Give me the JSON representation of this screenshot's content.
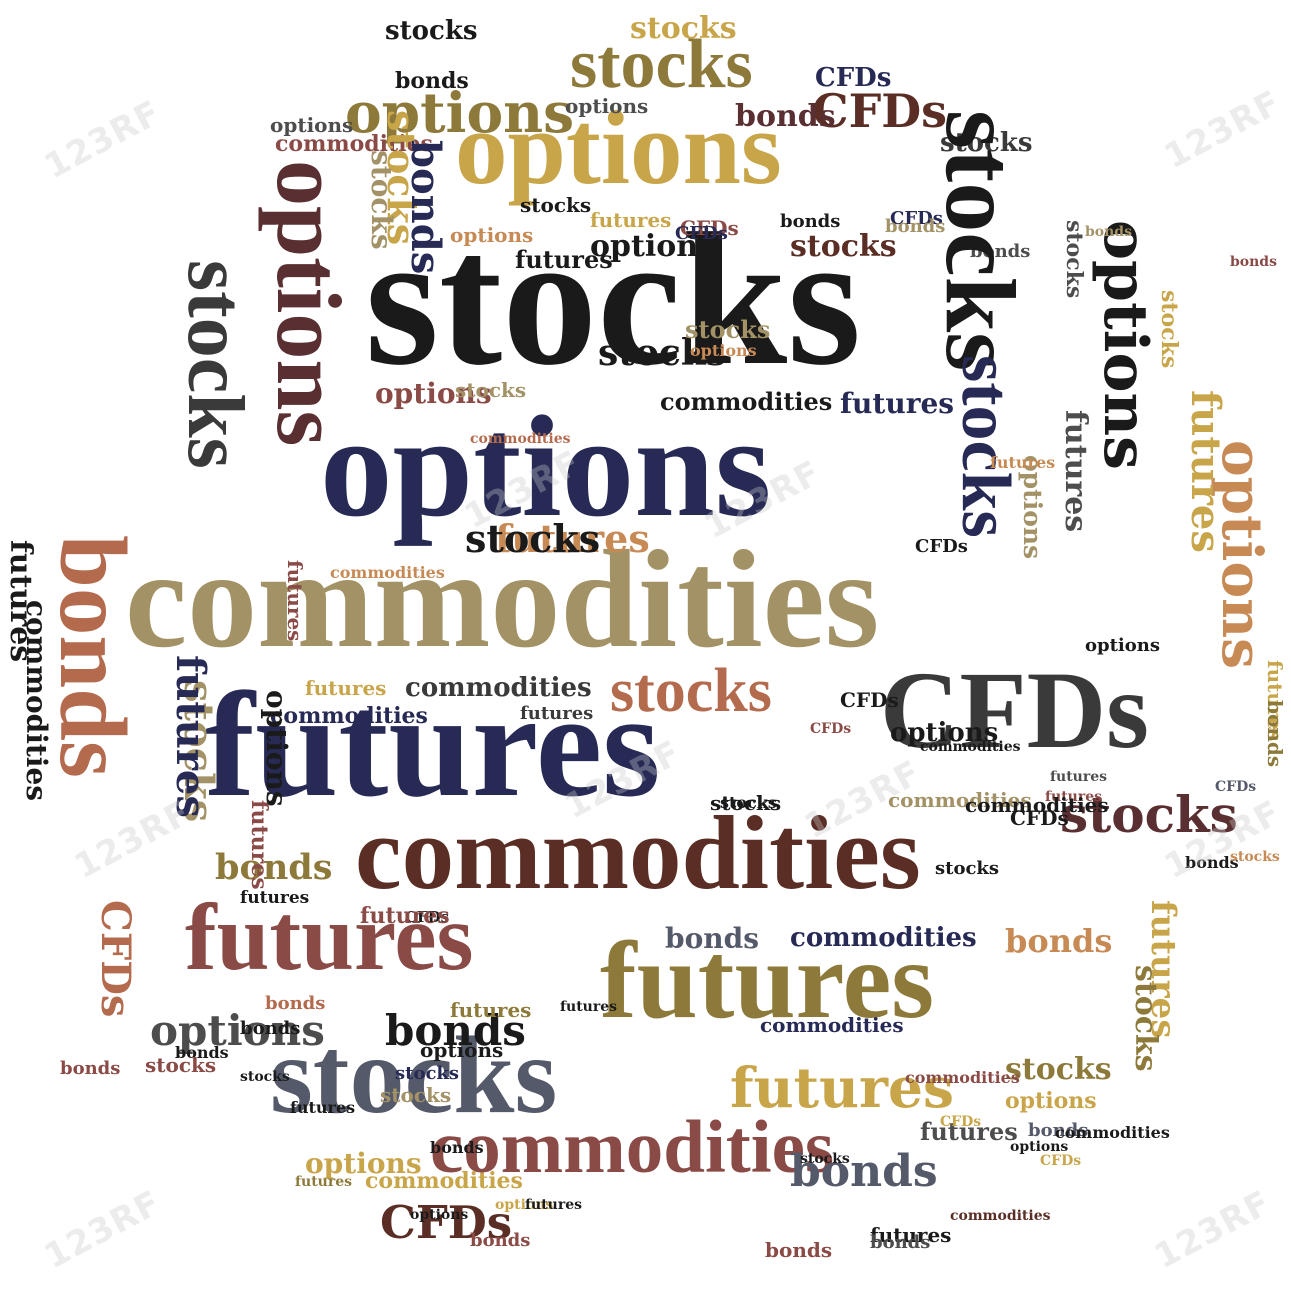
{
  "colors": {
    "black": "#1a1a1a",
    "navy": "#262a55",
    "mustard": "#c9a54a",
    "khaki": "#a39266",
    "olive": "#8d7a3a",
    "brown": "#5a2e24",
    "plum": "#5a2f32",
    "rust": "#b46a4d",
    "rose": "#8a4a46",
    "slate": "#555a6a",
    "grey": "#4d4d4d",
    "darkgrey": "#3a3a3a",
    "tan": "#c88a55"
  },
  "watermark": "123RF",
  "words": [
    {
      "text": "stocks",
      "c": "black"
    },
    {
      "text": "options",
      "c": "mustard"
    },
    {
      "text": "options",
      "c": "navy"
    },
    {
      "text": "commodities",
      "c": "khaki"
    },
    {
      "text": "futures",
      "c": "navy"
    },
    {
      "text": "CFDs",
      "c": "darkgrey"
    },
    {
      "text": "commodities",
      "c": "brown"
    },
    {
      "text": "futures",
      "c": "olive"
    },
    {
      "text": "futures",
      "c": "rose"
    },
    {
      "text": "stocks",
      "c": "slate"
    },
    {
      "text": "commodities",
      "c": "rose"
    },
    {
      "text": "stocks",
      "c": "olive"
    },
    {
      "text": "options",
      "c": "olive"
    },
    {
      "text": "CFDs",
      "c": "brown"
    },
    {
      "text": "stocks",
      "c": "black"
    },
    {
      "text": "stocks",
      "c": "rust"
    },
    {
      "text": "futures",
      "c": "tan"
    },
    {
      "text": "stocks",
      "c": "black"
    },
    {
      "text": "options",
      "c": "grey"
    },
    {
      "text": "bonds",
      "c": "black"
    },
    {
      "text": "bonds",
      "c": "slate"
    },
    {
      "text": "CFDs",
      "c": "brown"
    },
    {
      "text": "stocks",
      "c": "plum"
    },
    {
      "text": "options",
      "c": "black"
    },
    {
      "text": "stocks",
      "c": "brown"
    },
    {
      "text": "commodities",
      "c": "black"
    },
    {
      "text": "commodities",
      "c": "navy"
    },
    {
      "text": "futures",
      "c": "mustard"
    },
    {
      "text": "futures",
      "c": "darkgrey"
    },
    {
      "text": "options",
      "c": "rose"
    },
    {
      "text": "commodities",
      "c": "khaki"
    },
    {
      "text": "futures",
      "c": "mustard"
    },
    {
      "text": "bonds",
      "c": "olive"
    },
    {
      "text": "bonds",
      "c": "tan"
    },
    {
      "text": "bonds",
      "c": "slate"
    },
    {
      "text": "commodities",
      "c": "navy"
    },
    {
      "text": "commodities",
      "c": "darkgrey"
    },
    {
      "text": "stocks",
      "c": "olive"
    },
    {
      "text": "options",
      "c": "mustard"
    },
    {
      "text": "options",
      "c": "mustard"
    },
    {
      "text": "options",
      "c": "black"
    },
    {
      "text": "futures",
      "c": "grey"
    },
    {
      "text": "commodities",
      "c": "navy"
    },
    {
      "text": "futures",
      "c": "olive"
    },
    {
      "text": "stocks",
      "c": "black"
    },
    {
      "text": "stocks",
      "c": "mustard"
    },
    {
      "text": "bonds",
      "c": "rose"
    },
    {
      "text": "bonds",
      "c": "black"
    },
    {
      "text": "CFDs",
      "c": "navy"
    },
    {
      "text": "stocks",
      "c": "darkgrey"
    },
    {
      "text": "bonds",
      "c": "plum"
    },
    {
      "text": "options",
      "c": "grey"
    },
    {
      "text": "stocks",
      "c": "khaki"
    },
    {
      "text": "options",
      "c": "tan"
    },
    {
      "text": "futures",
      "c": "navy"
    },
    {
      "text": "futures",
      "c": "black"
    },
    {
      "text": "commodities",
      "c": "rose"
    },
    {
      "text": "bonds",
      "c": "grey"
    },
    {
      "text": "bonds",
      "c": "black"
    },
    {
      "text": "CFDs",
      "c": "rose"
    },
    {
      "text": "CFDs",
      "c": "black"
    },
    {
      "text": "stocks",
      "c": "black",
      "v": true
    },
    {
      "text": "options",
      "c": "plum",
      "v": true
    },
    {
      "text": "stocks",
      "c": "darkgrey",
      "v": true
    },
    {
      "text": "bonds",
      "c": "rust",
      "v": true
    },
    {
      "text": "options",
      "c": "black",
      "v": true
    },
    {
      "text": "stocks",
      "c": "navy",
      "v": true
    },
    {
      "text": "options",
      "c": "tan",
      "v": true
    },
    {
      "text": "futures",
      "c": "mustard",
      "v": true
    },
    {
      "text": "futures",
      "c": "grey",
      "v": true
    },
    {
      "text": "futures",
      "c": "black",
      "v": true
    },
    {
      "text": "stocks",
      "c": "grey",
      "v": true
    },
    {
      "text": "commodities",
      "c": "black",
      "v": true
    },
    {
      "text": "stocks",
      "c": "mustard",
      "v": true
    },
    {
      "text": "stocks",
      "c": "khaki",
      "v": true
    },
    {
      "text": "bonds",
      "c": "navy",
      "v": true
    },
    {
      "text": "stocks",
      "c": "khaki",
      "v": true
    },
    {
      "text": "CFDs",
      "c": "rust",
      "v": true
    },
    {
      "text": "futures",
      "c": "mustard",
      "v": true
    },
    {
      "text": "stocks",
      "c": "mustard",
      "v": true
    },
    {
      "text": "futures",
      "c": "navy",
      "v": true
    },
    {
      "text": "options",
      "c": "khaki",
      "v": true
    },
    {
      "text": "futures",
      "c": "rose",
      "v": true
    },
    {
      "text": "stocks",
      "c": "olive",
      "v": true
    },
    {
      "text": "futures",
      "c": "rose",
      "v": true
    },
    {
      "text": "futures",
      "c": "mustard",
      "v": true
    },
    {
      "text": "options",
      "c": "black",
      "v": true
    },
    {
      "text": "bonds",
      "c": "olive",
      "v": true
    },
    {
      "text": "stocks",
      "c": "black"
    },
    {
      "text": "stocks",
      "c": "khaki"
    },
    {
      "text": "bonds",
      "c": "black"
    },
    {
      "text": "bonds",
      "c": "black"
    },
    {
      "text": "commodities",
      "c": "rust"
    },
    {
      "text": "CFDs",
      "c": "black"
    },
    {
      "text": "CFDs",
      "c": "navy"
    },
    {
      "text": "options",
      "c": "grey"
    },
    {
      "text": "stocks",
      "c": "black"
    },
    {
      "text": "stocks",
      "c": "khaki"
    },
    {
      "text": "stocks",
      "c": "navy"
    },
    {
      "text": "options",
      "c": "tan"
    },
    {
      "text": "bonds",
      "c": "khaki"
    },
    {
      "text": "futures",
      "c": "mustard"
    },
    {
      "text": "CFDs",
      "c": "navy"
    },
    {
      "text": "bonds",
      "c": "khaki"
    },
    {
      "text": "futures",
      "c": "rose"
    },
    {
      "text": "bonds",
      "c": "black"
    },
    {
      "text": "futures",
      "c": "black"
    },
    {
      "text": "futures",
      "c": "black"
    },
    {
      "text": "stocks",
      "c": "black"
    },
    {
      "text": "bonds",
      "c": "rose"
    },
    {
      "text": "CFDs",
      "c": "black"
    },
    {
      "text": "futures",
      "c": "tan"
    },
    {
      "text": "futures",
      "c": "rose"
    },
    {
      "text": "commodities",
      "c": "black"
    },
    {
      "text": "commodities",
      "c": "tan"
    },
    {
      "text": "commodities",
      "c": "rose"
    },
    {
      "text": "CFDs",
      "c": "mustard"
    },
    {
      "text": "stocks",
      "c": "black"
    },
    {
      "text": "stocks",
      "c": "tan"
    },
    {
      "text": "options",
      "c": "black"
    },
    {
      "text": "bonds",
      "c": "slate"
    },
    {
      "text": "bonds",
      "c": "rust"
    },
    {
      "text": "stocks",
      "c": "black"
    },
    {
      "text": "stocks",
      "c": "rose"
    },
    {
      "text": "CFDs",
      "c": "black"
    },
    {
      "text": "CFDs",
      "c": "rose"
    },
    {
      "text": "options",
      "c": "black"
    },
    {
      "text": "commodities",
      "c": "black"
    },
    {
      "text": "commodities",
      "c": "mustard"
    },
    {
      "text": "options",
      "c": "mustard"
    },
    {
      "text": "futures",
      "c": "black"
    },
    {
      "text": "options",
      "c": "black"
    },
    {
      "text": "bonds",
      "c": "black"
    },
    {
      "text": "stocks",
      "c": "black"
    },
    {
      "text": "bonds",
      "c": "rose"
    },
    {
      "text": "futures",
      "c": "black"
    },
    {
      "text": "commodities",
      "c": "brown"
    },
    {
      "text": "CFDs",
      "c": "mustard"
    },
    {
      "text": "CFDs",
      "c": "slate"
    },
    {
      "text": "bonds",
      "c": "rose"
    },
    {
      "text": "options",
      "c": "black"
    },
    {
      "text": "futures",
      "c": "black"
    },
    {
      "text": "commodities",
      "c": "black"
    },
    {
      "text": "futures",
      "c": "grey"
    },
    {
      "text": "bonds",
      "c": "grey"
    },
    {
      "text": "futures",
      "c": "olive"
    }
  ]
}
